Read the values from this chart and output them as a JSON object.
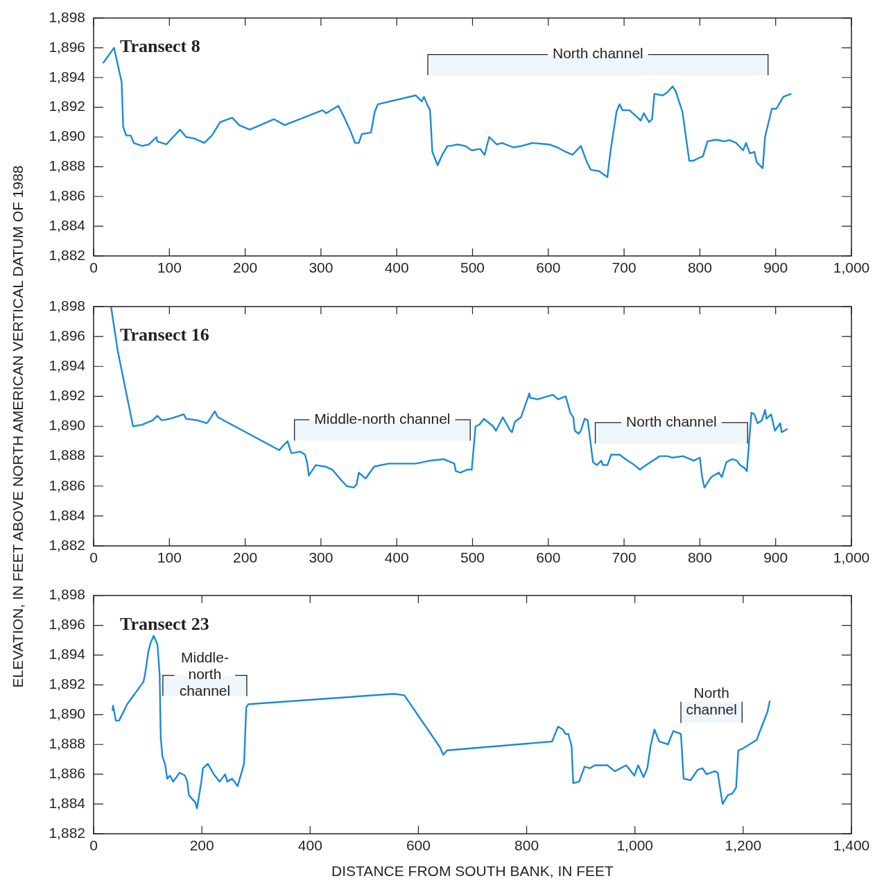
{
  "chart_data": [
    {
      "type": "line",
      "title": "Transect 8",
      "color": "#1a8ad4",
      "marker": "none",
      "line_style": "solid",
      "x": [
        13,
        27,
        37,
        39,
        43,
        49,
        53,
        64,
        73,
        83,
        84,
        96,
        105,
        114,
        122,
        133,
        146,
        156,
        167,
        183,
        192,
        206,
        220,
        238,
        252,
        302,
        307,
        323,
        329,
        339,
        345,
        350,
        354,
        366,
        371,
        375,
        425,
        433,
        436,
        440,
        444,
        447,
        454,
        460,
        467,
        471,
        480,
        490,
        499,
        510,
        516,
        522,
        532,
        539,
        554,
        565,
        579,
        601,
        612,
        623,
        632,
        643,
        651,
        656,
        667,
        678,
        682,
        690,
        694,
        698,
        707,
        718,
        722,
        726,
        733,
        737,
        740,
        751,
        757,
        764,
        768,
        777,
        786,
        791,
        799,
        804,
        810,
        819,
        824,
        832,
        839,
        848,
        857,
        861,
        866,
        872,
        875,
        883,
        886,
        895,
        901,
        910,
        920
      ],
      "values": [
        1895.0,
        1896.0,
        1893.7,
        1890.7,
        1890.1,
        1890.1,
        1889.6,
        1889.4,
        1889.5,
        1890.0,
        1889.7,
        1889.5,
        1890.0,
        1890.5,
        1890.0,
        1889.9,
        1889.6,
        1890.1,
        1891.0,
        1891.3,
        1890.8,
        1890.5,
        1890.8,
        1891.2,
        1890.8,
        1891.8,
        1891.6,
        1892.1,
        1891.5,
        1890.4,
        1889.6,
        1889.6,
        1890.2,
        1890.3,
        1891.7,
        1892.2,
        1892.8,
        1892.4,
        1892.7,
        1892.2,
        1891.8,
        1889.0,
        1888.1,
        1888.8,
        1889.4,
        1889.4,
        1889.5,
        1889.4,
        1889.1,
        1889.2,
        1888.8,
        1890.0,
        1889.5,
        1889.6,
        1889.3,
        1889.4,
        1889.6,
        1889.5,
        1889.3,
        1889.0,
        1888.8,
        1889.4,
        1888.3,
        1887.8,
        1887.7,
        1887.3,
        1889.0,
        1891.7,
        1892.2,
        1891.8,
        1891.8,
        1891.3,
        1891.1,
        1891.6,
        1891.0,
        1891.2,
        1892.9,
        1892.8,
        1893.0,
        1893.4,
        1893.1,
        1891.7,
        1888.4,
        1888.4,
        1888.6,
        1888.7,
        1889.7,
        1889.8,
        1889.8,
        1889.7,
        1889.8,
        1889.6,
        1889.1,
        1889.6,
        1888.9,
        1889.0,
        1888.3,
        1887.9,
        1890.0,
        1891.9,
        1891.9,
        1892.7,
        1892.9
      ],
      "xlim": [
        0,
        1000
      ],
      "xticks": [
        0,
        100,
        200,
        300,
        400,
        500,
        600,
        700,
        800,
        900,
        {
          "value": 1000,
          "label": "1,000"
        }
      ],
      "ylim": [
        1882,
        1898
      ],
      "yticks": [
        {
          "value": 1882,
          "label": "1,882"
        },
        {
          "value": 1884,
          "label": "1,884"
        },
        {
          "value": 1886,
          "label": "1,886"
        },
        {
          "value": 1888,
          "label": "1,888"
        },
        {
          "value": 1890,
          "label": "1,890"
        },
        {
          "value": 1892,
          "label": "1,892"
        },
        {
          "value": 1894,
          "label": "1,894"
        },
        {
          "value": 1896,
          "label": "1,896"
        },
        {
          "value": 1898,
          "label": "1,898"
        }
      ],
      "bands": [
        {
          "axis": "x",
          "from": 441,
          "to": 890,
          "label": "North channel",
          "color": "#eef5fb"
        }
      ]
    },
    {
      "type": "line",
      "title": "Transect 16",
      "color": "#1a8ad4",
      "marker": "none",
      "line_style": "solid",
      "ylabel": "ELEVATION, IN FEET ABOVE NORTH AMERICAN VERTICAL DATUM OF 1988",
      "x": [
        23,
        32,
        52,
        64,
        78,
        84,
        90,
        101,
        119,
        122,
        137,
        149,
        151,
        160,
        164,
        245,
        252,
        256,
        259,
        261,
        273,
        279,
        282,
        284,
        293,
        306,
        315,
        325,
        334,
        343,
        347,
        350,
        359,
        370,
        389,
        407,
        425,
        444,
        462,
        476,
        478,
        484,
        493,
        499,
        504,
        509,
        515,
        527,
        531,
        540,
        550,
        552,
        556,
        564,
        575,
        576,
        586,
        599,
        606,
        613,
        623,
        629,
        633,
        635,
        640,
        643,
        648,
        652,
        659,
        664,
        670,
        672,
        678,
        683,
        694,
        702,
        711,
        721,
        729,
        747,
        757,
        764,
        778,
        792,
        800,
        803,
        806,
        815,
        825,
        829,
        835,
        843,
        849,
        853,
        859,
        862,
        868,
        872,
        876,
        882,
        886,
        888,
        894,
        899,
        906,
        908,
        915
      ],
      "values": [
        1898.0,
        1895.0,
        1890.0,
        1890.1,
        1890.4,
        1890.7,
        1890.4,
        1890.5,
        1890.8,
        1890.5,
        1890.4,
        1890.2,
        1890.3,
        1891.0,
        1890.6,
        1888.4,
        1888.8,
        1889.0,
        1888.5,
        1888.2,
        1888.3,
        1888.1,
        1887.5,
        1886.7,
        1887.4,
        1887.3,
        1887.1,
        1886.5,
        1886.0,
        1885.9,
        1886.1,
        1886.9,
        1886.5,
        1887.3,
        1887.5,
        1887.5,
        1887.5,
        1887.7,
        1887.8,
        1887.5,
        1887.0,
        1886.9,
        1887.1,
        1887.1,
        1890.0,
        1890.1,
        1890.5,
        1890.0,
        1889.7,
        1890.6,
        1889.7,
        1889.6,
        1890.3,
        1890.6,
        1892.2,
        1891.9,
        1891.8,
        1892.0,
        1892.1,
        1891.8,
        1892.0,
        1890.9,
        1890.6,
        1889.7,
        1889.5,
        1889.7,
        1890.5,
        1890.4,
        1887.6,
        1887.4,
        1887.7,
        1887.4,
        1887.4,
        1888.1,
        1888.1,
        1887.8,
        1887.5,
        1887.1,
        1887.4,
        1888.0,
        1888.0,
        1887.9,
        1888.0,
        1887.7,
        1887.9,
        1886.6,
        1885.9,
        1886.6,
        1886.9,
        1886.6,
        1887.6,
        1887.8,
        1887.7,
        1887.4,
        1887.2,
        1887.0,
        1890.9,
        1890.8,
        1890.2,
        1890.4,
        1891.1,
        1890.5,
        1890.8,
        1889.7,
        1890.2,
        1889.6,
        1889.8
      ],
      "xlim": [
        0,
        1000
      ],
      "xticks": [
        0,
        100,
        200,
        300,
        400,
        500,
        600,
        700,
        800,
        900,
        {
          "value": 1000,
          "label": "1,000"
        }
      ],
      "ylim": [
        1882,
        1898
      ],
      "yticks": [
        {
          "value": 1882,
          "label": "1,882"
        },
        {
          "value": 1884,
          "label": "1,884"
        },
        {
          "value": 1886,
          "label": "1,886"
        },
        {
          "value": 1888,
          "label": "1,888"
        },
        {
          "value": 1890,
          "label": "1,890"
        },
        {
          "value": 1892,
          "label": "1,892"
        },
        {
          "value": 1894,
          "label": "1,894"
        },
        {
          "value": 1896,
          "label": "1,896"
        },
        {
          "value": 1898,
          "label": "1,898"
        }
      ],
      "bands": [
        {
          "axis": "x",
          "from": 265,
          "to": 497,
          "label": "Middle-north channel",
          "color": "#eef5fb"
        },
        {
          "axis": "x",
          "from": 662,
          "to": 863,
          "label": "North channel",
          "color": "#eef5fb"
        }
      ]
    },
    {
      "type": "line",
      "title": "Transect 23",
      "color": "#1a8ad4",
      "marker": "none",
      "line_style": "solid",
      "xlabel": "DISTANCE FROM SOUTH BANK, IN FEET",
      "x": [
        35,
        36,
        41,
        47,
        54,
        62,
        92,
        95,
        101,
        105,
        111,
        118,
        122,
        124,
        127,
        132,
        136,
        141,
        147,
        159,
        169,
        173,
        176,
        183,
        188,
        191,
        199,
        202,
        211,
        222,
        233,
        243,
        247,
        256,
        266,
        278,
        282,
        286,
        555,
        574,
        640,
        646,
        653,
        847,
        858,
        867,
        872,
        877,
        883,
        886,
        897,
        907,
        917,
        926,
        949,
        963,
        984,
        999,
        1006,
        1016,
        1023,
        1029,
        1036,
        1045,
        1061,
        1071,
        1085,
        1090,
        1103,
        1116,
        1125,
        1132,
        1148,
        1153,
        1158,
        1162,
        1172,
        1180,
        1187,
        1191,
        1198,
        1225,
        1230,
        1245,
        1249
      ],
      "values": [
        1890.3,
        1890.6,
        1889.6,
        1889.6,
        1890.1,
        1890.7,
        1892.2,
        1892.7,
        1894.2,
        1894.8,
        1895.3,
        1894.7,
        1892.7,
        1888.5,
        1887.2,
        1886.7,
        1885.7,
        1885.9,
        1885.5,
        1886.1,
        1885.9,
        1885.5,
        1884.6,
        1884.3,
        1884.1,
        1883.7,
        1885.5,
        1886.4,
        1886.7,
        1886.0,
        1885.5,
        1886.0,
        1885.5,
        1885.7,
        1885.2,
        1886.7,
        1890.5,
        1890.7,
        1891.4,
        1891.3,
        1887.8,
        1887.3,
        1887.6,
        1888.2,
        1889.2,
        1889.0,
        1888.7,
        1888.7,
        1887.9,
        1885.4,
        1885.5,
        1886.5,
        1886.4,
        1886.6,
        1886.6,
        1886.2,
        1886.6,
        1885.9,
        1886.6,
        1885.8,
        1886.4,
        1887.9,
        1889.0,
        1888.2,
        1888.0,
        1888.9,
        1888.7,
        1885.7,
        1885.6,
        1886.3,
        1886.4,
        1886.0,
        1886.2,
        1886.1,
        1884.9,
        1884.0,
        1884.6,
        1884.7,
        1885.1,
        1887.6,
        1887.7,
        1888.3,
        1888.8,
        1890.2,
        1890.9
      ],
      "xlim": [
        0,
        1400
      ],
      "xticks": [
        0,
        200,
        400,
        600,
        800,
        {
          "value": 1000,
          "label": "1,000"
        },
        {
          "value": 1200,
          "label": "1,200"
        },
        {
          "value": 1400,
          "label": "1,400"
        }
      ],
      "ylim": [
        1882,
        1898
      ],
      "yticks": [
        {
          "value": 1882,
          "label": "1,882"
        },
        {
          "value": 1884,
          "label": "1,884"
        },
        {
          "value": 1886,
          "label": "1,886"
        },
        {
          "value": 1888,
          "label": "1,888"
        },
        {
          "value": 1890,
          "label": "1,890"
        },
        {
          "value": 1892,
          "label": "1,892"
        },
        {
          "value": 1894,
          "label": "1,894"
        },
        {
          "value": 1896,
          "label": "1,896"
        },
        {
          "value": 1898,
          "label": "1,898"
        }
      ],
      "bands": [
        {
          "axis": "x",
          "from": 128,
          "to": 283,
          "label": "Middle-north channel",
          "color": "#eef5fb"
        },
        {
          "axis": "x",
          "from": 1085,
          "to": 1198,
          "label": "North channel",
          "color": "#eef5fb"
        }
      ]
    }
  ]
}
